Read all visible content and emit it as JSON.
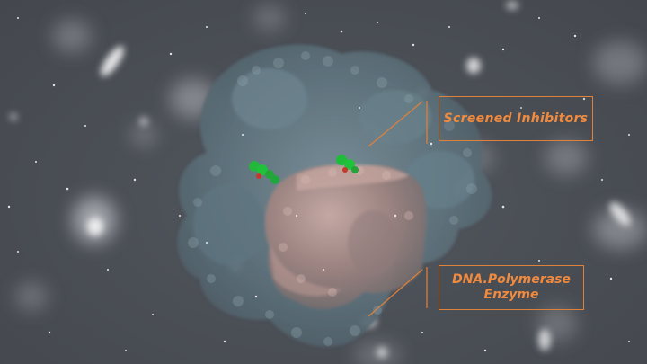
{
  "labels": {
    "inhibitors": "Screened Inhibitors",
    "enzyme_line1": "DNA.Polymerase",
    "enzyme_line2": "Enzyme"
  },
  "colors": {
    "background": "#4a4e55",
    "callout_accent": "#e0813b",
    "label_text": "#f08a3e",
    "protein_blue": "#6b8590",
    "protein_pink": "#a98a86",
    "inhibitor_green": "#1fc23a"
  }
}
